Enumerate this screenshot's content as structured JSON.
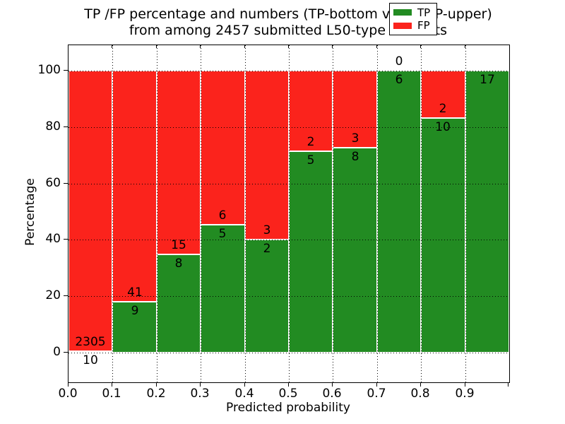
{
  "figure": {
    "title_line1": "TP /FP percentage and numbers (TP-bottom value, FP-upper)",
    "title_line2": "from among 2457 submitted L50-type contacts"
  },
  "chart_data": {
    "type": "bar",
    "stacked": true,
    "orientation": "vertical",
    "title": "TP /FP percentage and numbers (TP-bottom value, FP-upper) from among 2457 submitted L50-type contacts",
    "xlabel": "Predicted probability",
    "ylabel": "Percentage",
    "xlim": [
      0.0,
      1.0
    ],
    "ylim_visible_ticks": [
      0,
      100
    ],
    "x_tick_labels": [
      "0.0",
      "0.1",
      "0.2",
      "0.3",
      "0.4",
      "0.5",
      "0.6",
      "0.7",
      "0.8",
      "0.9"
    ],
    "y_tick_labels": [
      "0",
      "20",
      "40",
      "60",
      "80",
      "100"
    ],
    "y_tick_values": [
      0,
      20,
      40,
      60,
      80,
      100
    ],
    "grid": "dotted",
    "bin_width": 0.1,
    "units": "percent of bin total; annotated numbers are raw counts (TP below boundary, FP above)",
    "bins": [
      {
        "range": "0.0-0.1",
        "tp": 10,
        "fp": 2305,
        "tp_pct": 0.43,
        "tp_label": "10",
        "fp_label": "2305"
      },
      {
        "range": "0.1-0.2",
        "tp": 9,
        "fp": 41,
        "tp_pct": 18.0,
        "tp_label": "9",
        "fp_label": "41"
      },
      {
        "range": "0.2-0.3",
        "tp": 8,
        "fp": 15,
        "tp_pct": 34.78,
        "tp_label": "8",
        "fp_label": "15"
      },
      {
        "range": "0.3-0.4",
        "tp": 5,
        "fp": 6,
        "tp_pct": 45.45,
        "tp_label": "5",
        "fp_label": "6"
      },
      {
        "range": "0.4-0.5",
        "tp": 2,
        "fp": 3,
        "tp_pct": 40.0,
        "tp_label": "2",
        "fp_label": "3"
      },
      {
        "range": "0.5-0.6",
        "tp": 5,
        "fp": 2,
        "tp_pct": 71.43,
        "tp_label": "5",
        "fp_label": "2"
      },
      {
        "range": "0.6-0.7",
        "tp": 8,
        "fp": 3,
        "tp_pct": 72.73,
        "tp_label": "8",
        "fp_label": "3"
      },
      {
        "range": "0.7-0.8",
        "tp": 6,
        "fp": 0,
        "tp_pct": 100.0,
        "tp_label": "6",
        "fp_label": "0"
      },
      {
        "range": "0.8-0.9",
        "tp": 10,
        "fp": 2,
        "tp_pct": 83.33,
        "tp_label": "10",
        "fp_label": "2"
      },
      {
        "range": "0.9-1.0",
        "tp": 17,
        "fp": null,
        "tp_pct": 100.0,
        "tp_label": "17",
        "fp_label": ""
      }
    ],
    "legend": {
      "position": "upper right",
      "entries": [
        {
          "label": "TP",
          "color": "#228b22"
        },
        {
          "label": "FP",
          "color": "#fb231c"
        }
      ]
    },
    "colors": {
      "tp": "#228b22",
      "fp": "#fb231c",
      "background": "#ffffff",
      "grid": "#000000"
    }
  }
}
